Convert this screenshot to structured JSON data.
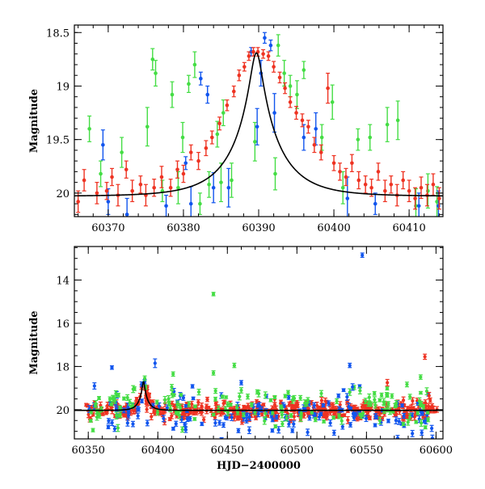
{
  "colors": {
    "green": "#44dd44",
    "blue": "#1155ee",
    "red": "#ee3322",
    "model": "#000000",
    "axes": "#000000"
  },
  "chart_data": [
    {
      "type": "scatter",
      "panel": "top",
      "ylabel": "Magnitude",
      "xlabel": "",
      "xlim": [
        60365.5,
        60414.5
      ],
      "ylim": [
        20.22,
        18.43
      ],
      "y_inverted": true,
      "grid": false,
      "legend": "none",
      "x_ticks": [
        60370,
        60380,
        60390,
        60400,
        60410
      ],
      "y_ticks": [
        18.5,
        19,
        19.5,
        20
      ],
      "y_tick_labels": [
        "18.5",
        "19",
        "19.5",
        "20"
      ],
      "model_curve": {
        "type": "line",
        "description_of_shape": "single-lens microlensing peak",
        "t0": 60389.7,
        "baseline_mag": 20.03,
        "peak_mag": 18.69,
        "tE": 6.2
      },
      "series": [
        {
          "color_key": "green",
          "points": [
            [
              60367.5,
              19.4,
              0.12
            ],
            [
              60369.0,
              19.82,
              0.12
            ],
            [
              60371.8,
              19.62,
              0.14
            ],
            [
              60375.2,
              19.38,
              0.18
            ],
            [
              60375.9,
              18.75,
              0.1
            ],
            [
              60376.3,
              18.88,
              0.12
            ],
            [
              60377.2,
              19.98,
              0.1
            ],
            [
              60378.5,
              19.08,
              0.12
            ],
            [
              60379.3,
              19.95,
              0.15
            ],
            [
              60379.9,
              19.48,
              0.14
            ],
            [
              60380.7,
              18.98,
              0.08
            ],
            [
              60381.5,
              18.8,
              0.12
            ],
            [
              60382.2,
              20.1,
              0.1
            ],
            [
              60383.4,
              19.92,
              0.12
            ],
            [
              60384.5,
              19.45,
              0.12
            ],
            [
              60385.0,
              19.9,
              0.18
            ],
            [
              60385.3,
              19.25,
              0.12
            ],
            [
              60386.4,
              19.88,
              0.16
            ],
            [
              60389.5,
              19.52,
              0.18
            ],
            [
              60392.2,
              19.82,
              0.15
            ],
            [
              60392.6,
              18.62,
              0.1
            ],
            [
              60393.4,
              18.88,
              0.12
            ],
            [
              60394.2,
              19.0,
              0.1
            ],
            [
              60395.1,
              19.08,
              0.13
            ],
            [
              60396.0,
              18.85,
              0.08
            ],
            [
              60398.4,
              19.48,
              0.12
            ],
            [
              60399.8,
              19.15,
              0.16
            ],
            [
              60401.2,
              19.95,
              0.15
            ],
            [
              60403.2,
              19.5,
              0.1
            ],
            [
              60404.8,
              19.48,
              0.12
            ],
            [
              60407.1,
              19.36,
              0.16
            ],
            [
              60408.5,
              19.32,
              0.18
            ],
            [
              60410.9,
              20.12,
              0.16
            ],
            [
              60412.5,
              19.98,
              0.16
            ],
            [
              60413.7,
              20.08,
              0.14
            ]
          ]
        },
        {
          "color_key": "blue",
          "points": [
            [
              60369.3,
              19.55,
              0.14
            ],
            [
              60370.0,
              20.08,
              0.12
            ],
            [
              60372.5,
              20.2,
              0.15
            ],
            [
              60377.7,
              20.12,
              0.1
            ],
            [
              60380.3,
              19.72,
              0.06
            ],
            [
              60381.0,
              20.1,
              0.16
            ],
            [
              60382.3,
              18.93,
              0.06
            ],
            [
              60383.2,
              19.08,
              0.08
            ],
            [
              60384.0,
              19.95,
              0.14
            ],
            [
              60386.0,
              19.95,
              0.18
            ],
            [
              60389.0,
              18.68,
              0.04
            ],
            [
              60389.8,
              19.38,
              0.17
            ],
            [
              60390.3,
              18.88,
              0.12
            ],
            [
              60390.8,
              18.55,
              0.05
            ],
            [
              60391.6,
              18.62,
              0.05
            ],
            [
              60392.1,
              19.25,
              0.18
            ],
            [
              60396.0,
              19.48,
              0.12
            ],
            [
              60397.6,
              19.4,
              0.15
            ],
            [
              60401.8,
              20.05,
              0.2
            ],
            [
              60405.5,
              20.1,
              0.1
            ],
            [
              60411.3,
              20.12,
              0.12
            ],
            [
              60413.9,
              20.12,
              0.14
            ]
          ]
        },
        {
          "color_key": "red",
          "points": [
            [
              60366.0,
              20.08,
              0.1
            ],
            [
              60366.8,
              19.88,
              0.1
            ],
            [
              60368.5,
              20.0,
              0.1
            ],
            [
              60369.8,
              19.98,
              0.08
            ],
            [
              60370.5,
              19.85,
              0.08
            ],
            [
              60371.3,
              20.02,
              0.1
            ],
            [
              60372.4,
              19.78,
              0.08
            ],
            [
              60373.2,
              19.98,
              0.1
            ],
            [
              60374.3,
              19.92,
              0.08
            ],
            [
              60375.0,
              20.02,
              0.1
            ],
            [
              60376.1,
              19.95,
              0.08
            ],
            [
              60377.1,
              19.85,
              0.1
            ],
            [
              60378.3,
              19.95,
              0.08
            ],
            [
              60379.2,
              19.78,
              0.08
            ],
            [
              60380.0,
              19.82,
              0.08
            ],
            [
              60381.0,
              19.62,
              0.07
            ],
            [
              60382.0,
              19.7,
              0.08
            ],
            [
              60383.0,
              19.58,
              0.07
            ],
            [
              60383.8,
              19.48,
              0.06
            ],
            [
              60384.8,
              19.35,
              0.06
            ],
            [
              60385.8,
              19.18,
              0.05
            ],
            [
              60386.7,
              19.05,
              0.05
            ],
            [
              60387.4,
              18.9,
              0.05
            ],
            [
              60388.1,
              18.82,
              0.04
            ],
            [
              60388.7,
              18.72,
              0.04
            ],
            [
              60389.3,
              18.68,
              0.04
            ],
            [
              60389.9,
              18.68,
              0.04
            ],
            [
              60390.6,
              18.7,
              0.04
            ],
            [
              60391.3,
              18.72,
              0.04
            ],
            [
              60392.0,
              18.82,
              0.05
            ],
            [
              60392.8,
              18.92,
              0.05
            ],
            [
              60393.5,
              19.02,
              0.05
            ],
            [
              60394.2,
              19.15,
              0.05
            ],
            [
              60395.0,
              19.25,
              0.06
            ],
            [
              60395.8,
              19.32,
              0.06
            ],
            [
              60396.6,
              19.38,
              0.06
            ],
            [
              60397.4,
              19.55,
              0.07
            ],
            [
              60398.3,
              19.62,
              0.07
            ],
            [
              60399.2,
              19.02,
              0.14
            ],
            [
              60400.0,
              19.72,
              0.07
            ],
            [
              60400.8,
              19.8,
              0.08
            ],
            [
              60401.6,
              19.85,
              0.08
            ],
            [
              60402.4,
              19.72,
              0.08
            ],
            [
              60403.3,
              19.88,
              0.08
            ],
            [
              60404.2,
              19.92,
              0.08
            ],
            [
              60405.0,
              19.95,
              0.08
            ],
            [
              60405.9,
              19.8,
              0.08
            ],
            [
              60406.8,
              19.98,
              0.1
            ],
            [
              60407.6,
              19.92,
              0.08
            ],
            [
              60408.4,
              20.02,
              0.1
            ],
            [
              60409.2,
              19.88,
              0.08
            ],
            [
              60410.0,
              19.98,
              0.1
            ],
            [
              60410.8,
              20.05,
              0.1
            ],
            [
              60411.6,
              19.95,
              0.1
            ],
            [
              60412.4,
              20.02,
              0.1
            ],
            [
              60413.2,
              19.92,
              0.1
            ],
            [
              60414.0,
              20.05,
              0.1
            ]
          ]
        }
      ]
    },
    {
      "type": "scatter",
      "panel": "bottom",
      "ylabel": "Magnitude",
      "xlabel": "HJD−2400000",
      "xlim": [
        60340,
        60605
      ],
      "ylim": [
        21.35,
        12.45
      ],
      "y_inverted": true,
      "grid": false,
      "legend": "none",
      "x_ticks": [
        60350,
        60400,
        60450,
        60500,
        60550,
        60600
      ],
      "y_ticks": [
        14,
        16,
        18,
        20
      ],
      "model_curve": {
        "type": "line",
        "description_of_shape": "same single-lens peak over flat baseline",
        "t0": 60389.7,
        "baseline_mag": 20.03,
        "peak_mag": 18.69,
        "tE": 6.2
      },
      "notable_points": {
        "blue": [
          [
            60547,
            12.85,
            0.1
          ],
          [
            60538,
            17.95,
            0.1
          ],
          [
            60367,
            18.05,
            0.08
          ],
          [
            60398,
            17.85,
            0.2
          ],
          [
            60460,
            18.75,
            0.1
          ],
          [
            60540,
            18.95,
            0.15
          ]
        ],
        "green": [
          [
            60440,
            14.65,
            0.08
          ],
          [
            60440,
            18.3,
            0.1
          ],
          [
            60455,
            17.95,
            0.1
          ],
          [
            60411,
            18.35,
            0.1
          ],
          [
            60410,
            18.95,
            0.12
          ]
        ],
        "red": [
          [
            60592,
            17.55,
            0.12
          ],
          [
            60565,
            18.75,
            0.15
          ],
          [
            60595,
            19.35,
            0.15
          ]
        ]
      },
      "series_summary": [
        {
          "color_key": "red",
          "x_range": [
            60348,
            60602
          ],
          "typical_mag": 20.05,
          "scatter": 0.35
        },
        {
          "color_key": "blue",
          "x_range": [
            60350,
            60600
          ],
          "typical_mag": 20.2,
          "scatter": 0.6
        },
        {
          "color_key": "green",
          "x_range": [
            60350,
            60600
          ],
          "typical_mag": 19.9,
          "scatter": 0.5
        }
      ]
    }
  ]
}
